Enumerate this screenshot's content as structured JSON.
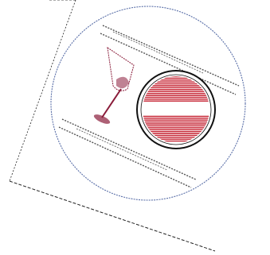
{
  "page": {
    "background": "#ffffff"
  },
  "colors": {
    "disc_outline": "#5a6fa8",
    "sheet_edge": "#222222",
    "logo_red": "#c41e2e",
    "logo_ring": "#111111",
    "glass_wine": "#8a1c3a",
    "text_lines": "#555555"
  },
  "icons": {
    "glass": "wine-glass-icon",
    "logo": "striped-circle-logo"
  }
}
